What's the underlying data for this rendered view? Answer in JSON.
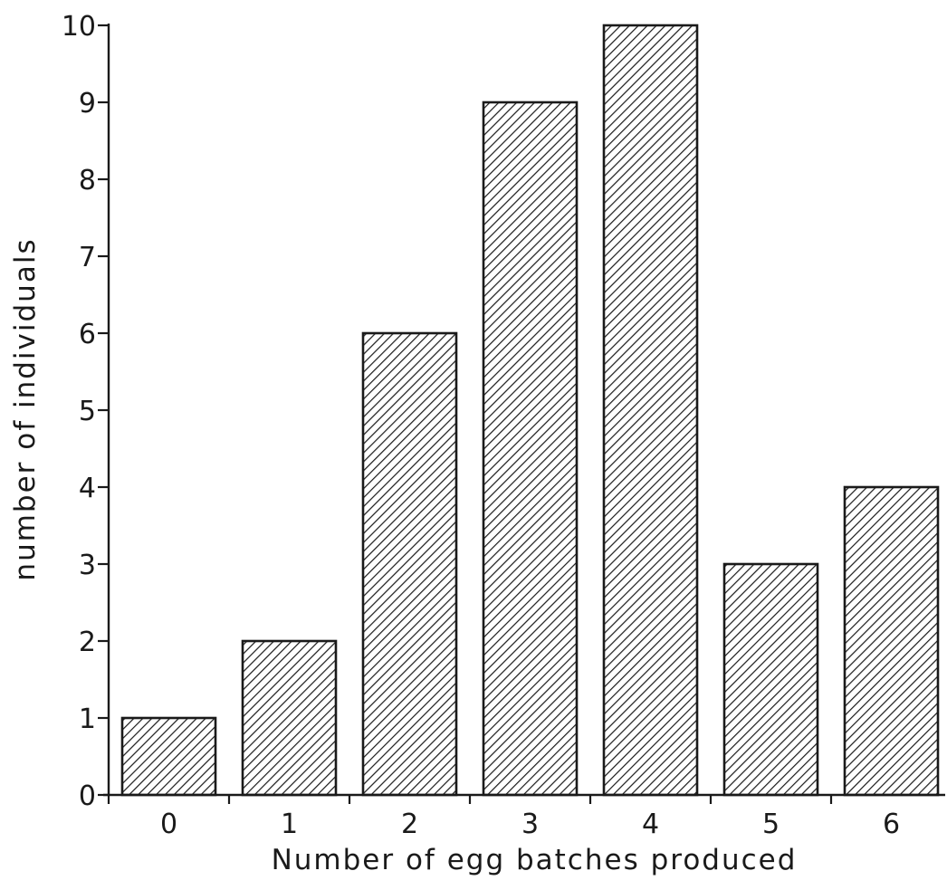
{
  "chart_data": {
    "type": "bar",
    "categories": [
      "0",
      "1",
      "2",
      "3",
      "4",
      "5",
      "6"
    ],
    "values": [
      1,
      2,
      6,
      9,
      10,
      3,
      4
    ],
    "title": "",
    "xlabel": "Number of egg batches produced",
    "ylabel": "number of individuals",
    "ylim": [
      0,
      10
    ],
    "yticks": [
      "0",
      "1",
      "2",
      "3",
      "4",
      "5",
      "6",
      "7",
      "8",
      "9",
      "10"
    ],
    "grid": false,
    "legend": "none",
    "bar_fill": "diagonal-hatch",
    "colors": {
      "ink": "#1a1a1a",
      "background": "#ffffff"
    }
  }
}
